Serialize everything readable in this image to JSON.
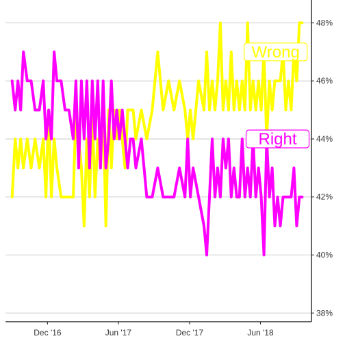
{
  "chart_data": {
    "type": "line",
    "title": "",
    "xlabel": "",
    "ylabel": "",
    "xlim": [
      "2016-08-15",
      "2018-10-10"
    ],
    "ylim": [
      37.7,
      48.6
    ],
    "yticks": [
      38,
      40,
      42,
      44,
      46,
      48
    ],
    "ytick_labels": [
      "38%",
      "40%",
      "42%",
      "44%",
      "46%",
      "48%"
    ],
    "xticks": [
      "2016-12-01",
      "2017-06-01",
      "2017-12-01",
      "2018-06-01"
    ],
    "xtick_labels": [
      "Dec '16",
      "Jun '17",
      "Dec '17",
      "Jun '18"
    ],
    "grid": "horizontal",
    "legend": "none",
    "y_axis_side": "right",
    "series": [
      {
        "name": "Wrong",
        "color": "#ffff00",
        "label_box_color": "#ffff00",
        "x": [
          "2016-09-01",
          "2016-09-09",
          "2016-09-16",
          "2016-09-23",
          "2016-09-30",
          "2016-10-10",
          "2016-10-20",
          "2016-10-30",
          "2016-11-10",
          "2016-11-20",
          "2016-11-27",
          "2016-12-04",
          "2016-12-11",
          "2016-12-18",
          "2016-12-25",
          "2017-01-05",
          "2017-01-15",
          "2017-01-25",
          "2017-02-05",
          "2017-02-12",
          "2017-02-19",
          "2017-02-26",
          "2017-03-05",
          "2017-03-12",
          "2017-03-19",
          "2017-03-26",
          "2017-04-02",
          "2017-04-09",
          "2017-04-16",
          "2017-04-23",
          "2017-04-30",
          "2017-05-07",
          "2017-05-14",
          "2017-05-21",
          "2017-05-28",
          "2017-06-04",
          "2017-06-11",
          "2017-06-18",
          "2017-06-25",
          "2017-07-02",
          "2017-07-09",
          "2017-07-16",
          "2017-07-30",
          "2017-08-13",
          "2017-08-27",
          "2017-09-10",
          "2017-09-24",
          "2017-10-08",
          "2017-10-22",
          "2017-11-05",
          "2017-11-19",
          "2017-11-26",
          "2017-12-03",
          "2017-12-10",
          "2017-12-24",
          "2018-01-07",
          "2018-01-14",
          "2018-01-21",
          "2018-01-28",
          "2018-02-04",
          "2018-02-11",
          "2018-02-18",
          "2018-02-25",
          "2018-03-04",
          "2018-03-11",
          "2018-03-18",
          "2018-03-25",
          "2018-04-01",
          "2018-04-08",
          "2018-04-15",
          "2018-04-22",
          "2018-04-29",
          "2018-05-06",
          "2018-05-13",
          "2018-05-20",
          "2018-05-27",
          "2018-06-03",
          "2018-06-10",
          "2018-06-17",
          "2018-06-24",
          "2018-07-01",
          "2018-07-08",
          "2018-07-15",
          "2018-07-22",
          "2018-07-29",
          "2018-08-05",
          "2018-08-12",
          "2018-08-19",
          "2018-08-26",
          "2018-09-02",
          "2018-09-09",
          "2018-09-16"
        ],
        "values": [
          42,
          44,
          43,
          44,
          43,
          44,
          43,
          44,
          43,
          44,
          42,
          45,
          42,
          44,
          43,
          42,
          42,
          42,
          42,
          45,
          44,
          43,
          41,
          44,
          42,
          45,
          42,
          44,
          43,
          45,
          41,
          45,
          43,
          45,
          44,
          45,
          44,
          43,
          45,
          45,
          45,
          44,
          45,
          44,
          45,
          47,
          45,
          46,
          45,
          46,
          45,
          44,
          45,
          44,
          46,
          45,
          47,
          45,
          46,
          45,
          46,
          48,
          45,
          46,
          45,
          47,
          45,
          46,
          45,
          46,
          45,
          48,
          45,
          46,
          45,
          46,
          45,
          47,
          44,
          46,
          45,
          46,
          46,
          46,
          47,
          45,
          46,
          45,
          47,
          46,
          48,
          48
        ]
      },
      {
        "name": "Right",
        "color": "#ff00ff",
        "label_box_color": "#ff00ff",
        "x": [
          "2016-09-01",
          "2016-09-09",
          "2016-09-16",
          "2016-09-23",
          "2016-09-30",
          "2016-10-10",
          "2016-10-20",
          "2016-10-30",
          "2016-11-10",
          "2016-11-20",
          "2016-11-27",
          "2016-12-04",
          "2016-12-11",
          "2016-12-18",
          "2016-12-25",
          "2017-01-05",
          "2017-01-15",
          "2017-01-25",
          "2017-02-05",
          "2017-02-12",
          "2017-02-19",
          "2017-02-26",
          "2017-03-05",
          "2017-03-12",
          "2017-03-19",
          "2017-03-26",
          "2017-04-02",
          "2017-04-09",
          "2017-04-16",
          "2017-04-23",
          "2017-04-30",
          "2017-05-07",
          "2017-05-14",
          "2017-05-21",
          "2017-05-28",
          "2017-06-04",
          "2017-06-11",
          "2017-06-18",
          "2017-06-25",
          "2017-07-02",
          "2017-07-09",
          "2017-07-16",
          "2017-07-30",
          "2017-08-13",
          "2017-08-27",
          "2017-09-10",
          "2017-09-24",
          "2017-10-08",
          "2017-10-22",
          "2017-11-05",
          "2017-11-19",
          "2017-11-26",
          "2017-12-03",
          "2017-12-10",
          "2017-12-24",
          "2018-01-07",
          "2018-01-14",
          "2018-01-21",
          "2018-01-28",
          "2018-02-04",
          "2018-02-11",
          "2018-02-18",
          "2018-02-25",
          "2018-03-04",
          "2018-03-11",
          "2018-03-18",
          "2018-03-25",
          "2018-04-01",
          "2018-04-08",
          "2018-04-15",
          "2018-04-22",
          "2018-04-29",
          "2018-05-06",
          "2018-05-13",
          "2018-05-20",
          "2018-05-27",
          "2018-06-03",
          "2018-06-10",
          "2018-06-17",
          "2018-06-24",
          "2018-07-01",
          "2018-07-08",
          "2018-07-15",
          "2018-07-22",
          "2018-07-29",
          "2018-08-05",
          "2018-08-12",
          "2018-08-19",
          "2018-08-26",
          "2018-09-02",
          "2018-09-09",
          "2018-09-16"
        ],
        "values": [
          46,
          45,
          46,
          45,
          47,
          46,
          46,
          45,
          45,
          46,
          44,
          45,
          44,
          47,
          46,
          46,
          45,
          45,
          44,
          46,
          43,
          46,
          44,
          46,
          43,
          46,
          44,
          46,
          43,
          46,
          43,
          44,
          46,
          44,
          45,
          44,
          45,
          44,
          43,
          44,
          44,
          43,
          44,
          42,
          42,
          43,
          42,
          42,
          42,
          43,
          42,
          44,
          42,
          43,
          42,
          41,
          40,
          42,
          44,
          42,
          43,
          42,
          44,
          43,
          44,
          42,
          43,
          42,
          42,
          44,
          42,
          43,
          42,
          44,
          42,
          43,
          42,
          40,
          44,
          42,
          43,
          41,
          42,
          41,
          42,
          42,
          42,
          42,
          43,
          41,
          42,
          42
        ]
      }
    ],
    "annotations": [
      {
        "text": "Wrong",
        "series": "Wrong",
        "anchor_x": "2018-07-10",
        "anchor_y": 47.0
      },
      {
        "text": "Right",
        "series": "Right",
        "anchor_x": "2018-07-15",
        "anchor_y": 44.0
      }
    ]
  }
}
